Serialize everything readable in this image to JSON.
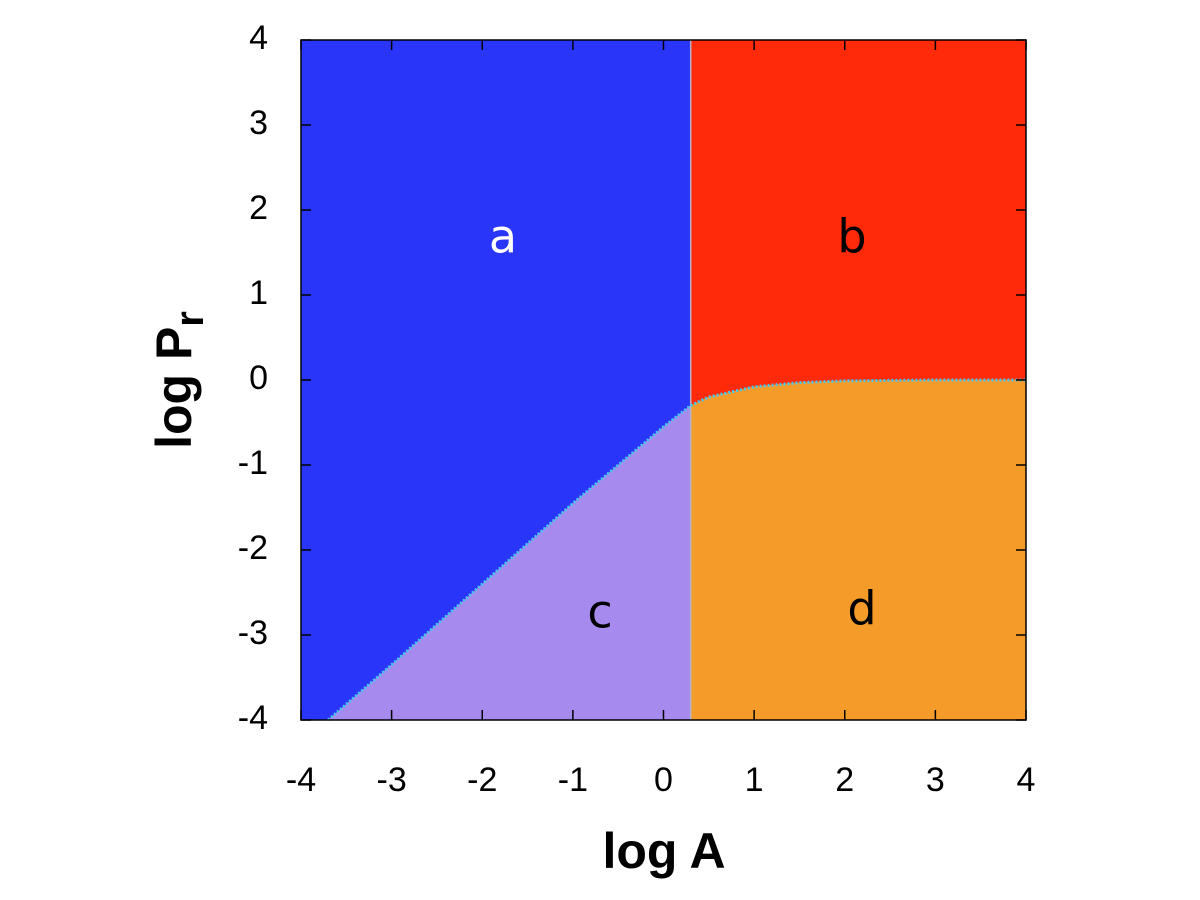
{
  "chart_data": {
    "type": "phase",
    "x_label": "log A",
    "y_label": "log P",
    "y_label_sub": "r",
    "xlim": [
      -4,
      4
    ],
    "ylim": [
      -4,
      4
    ],
    "xticks": [
      -4,
      -3,
      -2,
      -1,
      0,
      1,
      2,
      3,
      4
    ],
    "yticks": [
      -4,
      -3,
      -2,
      -1,
      0,
      1,
      2,
      3,
      4
    ],
    "divider_x": 0.3,
    "divider_color": "#b4b4c8",
    "boundary": {
      "color": "#45c6ee",
      "x": [
        -3.7,
        -3,
        -2,
        -1,
        0,
        0.3,
        0.5,
        1,
        1.5,
        2,
        3,
        4
      ],
      "y": [
        -4,
        -3.35,
        -2.4,
        -1.45,
        -0.55,
        -0.3,
        -0.2,
        -0.08,
        -0.03,
        -0.01,
        0,
        0
      ]
    },
    "regions": [
      {
        "name": "a",
        "color": "#2936fa",
        "label_color": "#ffffff"
      },
      {
        "name": "b",
        "color": "#ff2a0a",
        "label_color": "#000000"
      },
      {
        "name": "c",
        "color": "#a78aee",
        "label_color": "#000000"
      },
      {
        "name": "d",
        "color": "#f59b2a",
        "label_color": "#000000"
      }
    ]
  }
}
